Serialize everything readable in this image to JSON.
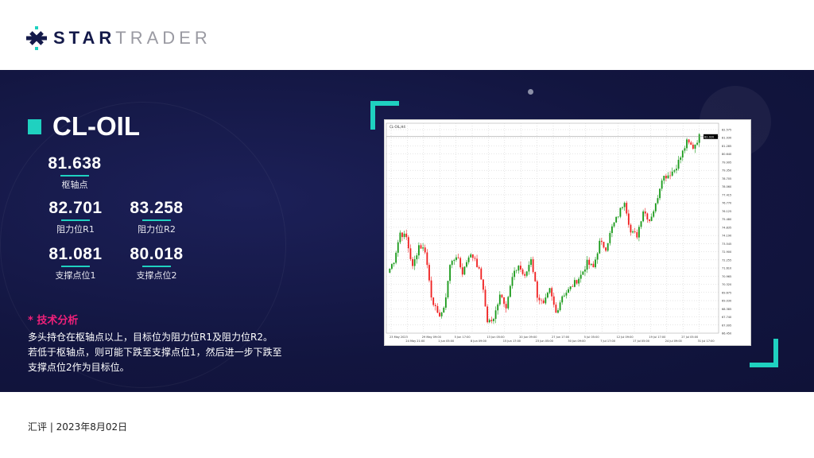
{
  "brand": {
    "part1": "STAR",
    "part2": "TRADER",
    "accent": "#1fd1c0",
    "navy": "#141a4a"
  },
  "symbol": "CL-OIL",
  "levels": {
    "pivot": {
      "value": "81.638",
      "label": "枢轴点"
    },
    "r1": {
      "value": "82.701",
      "label": "阻力位R1"
    },
    "r2": {
      "value": "83.258",
      "label": "阻力位R2"
    },
    "s1": {
      "value": "81.081",
      "label": "支撑点位1"
    },
    "s2": {
      "value": "80.018",
      "label": "支撑点位2"
    }
  },
  "analysis": {
    "title": "* 技术分析",
    "lines": [
      "多头持仓在枢轴点以上，目标位为阻力位R1及阻力位R2。",
      "若低于枢轴点，则可能下跌至支撑点位1，然后进一步下跌至",
      "支撑点位2作为目标位。"
    ]
  },
  "footer": "汇评 | 2023年8月02日",
  "chart_data": {
    "type": "candlestick",
    "legend": "CL-OIL,H4",
    "up_color": "#1a9a1a",
    "down_color": "#f02020",
    "ylim": [
      66.45,
      82.575
    ],
    "yticks": [
      "66.450",
      "67.095",
      "67.740",
      "68.385",
      "69.030",
      "69.675",
      "70.320",
      "70.965",
      "71.610",
      "72.255",
      "72.900",
      "73.545",
      "74.190",
      "74.835",
      "75.480",
      "76.125",
      "76.770",
      "77.415",
      "78.060",
      "78.705",
      "79.350",
      "79.995",
      "80.640",
      "81.285",
      "81.930",
      "82.575"
    ],
    "current_price": "82.020",
    "xticks": [
      "23 May 2023",
      "24 May 21:00",
      "29 May 09:00",
      "1 Jun 05:00",
      "5 Jun 17:00",
      "8 Jun 09:00",
      "13 Jun 05:00",
      "15 Jun 17:00",
      "20 Jun 09:00",
      "23 Jun 05:00",
      "27 Jun 17:00",
      "30 Jun 09:00",
      "5 Jul 05:00",
      "7 Jul 17:00",
      "12 Jul 09:00",
      "17 Jul 05:00",
      "19 Jul 17:00",
      "24 Jul 09:00",
      "27 Jul 05:00",
      "31 Jul 17:00"
    ],
    "closes": [
      71.23,
      72.22,
      74.41,
      74.01,
      71.63,
      73.42,
      73.02,
      69.44,
      67.84,
      68.24,
      71.83,
      72.62,
      71.23,
      72.62,
      72.42,
      70.83,
      67.45,
      67.45,
      69.64,
      68.64,
      70.83,
      71.83,
      70.83,
      72.42,
      69.44,
      68.64,
      69.84,
      68.04,
      69.44,
      69.84,
      70.43,
      71.03,
      72.02,
      71.63,
      73.62,
      73.22,
      74.81,
      75.81,
      77.0,
      74.41,
      74.21,
      76.2,
      75.41,
      76.6,
      78.79,
      78.99,
      79.39,
      80.39,
      81.58,
      81.18,
      82.02
    ]
  }
}
